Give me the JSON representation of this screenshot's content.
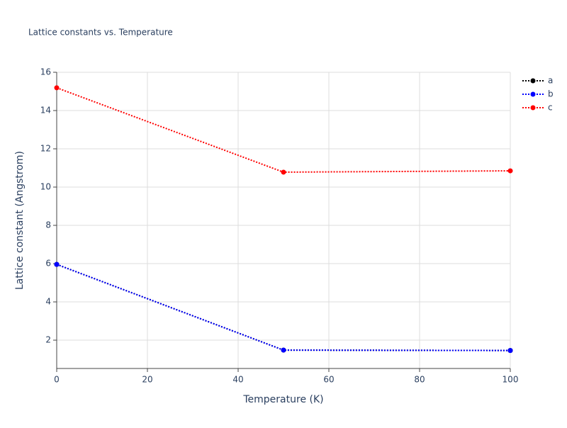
{
  "chart_data": {
    "type": "line",
    "title": "Lattice constants vs. Temperature",
    "xlabel": "Temperature (K)",
    "ylabel": "Lattice constant (Angstrom)",
    "x": [
      0,
      50,
      100
    ],
    "series": [
      {
        "name": "a",
        "color": "#000000",
        "values": [
          5.96,
          1.48,
          1.46
        ]
      },
      {
        "name": "b",
        "color": "#0000ff",
        "values": [
          5.96,
          1.48,
          1.46
        ]
      },
      {
        "name": "c",
        "color": "#ff0000",
        "values": [
          15.19,
          10.78,
          10.85
        ]
      }
    ],
    "xlim": [
      0,
      100
    ],
    "xticks": [
      0,
      20,
      40,
      60,
      80,
      100
    ],
    "ylim": [
      0.52,
      16
    ],
    "yticks": [
      2,
      4,
      6,
      8,
      10,
      12,
      14,
      16
    ],
    "grid": true,
    "legend": "right"
  }
}
